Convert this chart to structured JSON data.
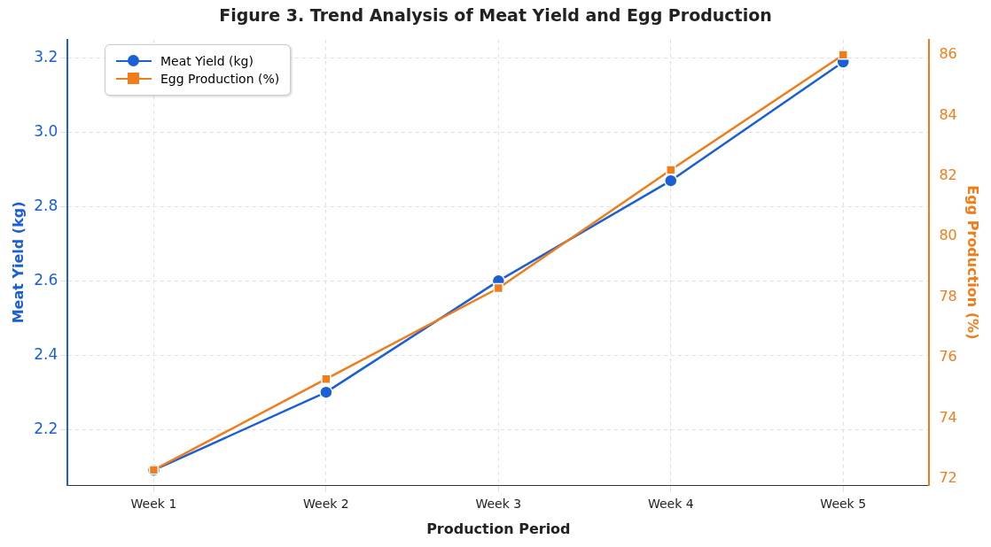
{
  "chart_data": {
    "type": "line",
    "title": "Figure 3. Trend Analysis of Meat Yield and Egg Production",
    "xlabel": "Production Period",
    "ylabel": "Meat Yield (kg)",
    "y2label": "Egg Production (%)",
    "categories": [
      "Week 1",
      "Week 2",
      "Week 3",
      "Week 4",
      "Week 5"
    ],
    "series": [
      {
        "name": "Meat Yield (kg)",
        "color": "#1a5fd6",
        "marker": "circle",
        "values": [
          2.09,
          2.3,
          2.6,
          2.87,
          3.19
        ]
      },
      {
        "name": "Egg Production (%)",
        "color": "#f07c1a",
        "marker": "square",
        "axis": "y2",
        "values": [
          72.3,
          75.3,
          78.3,
          82.2,
          86.0
        ]
      }
    ],
    "ylim": [
      2.05,
      3.25
    ],
    "yticks": [
      2.2,
      2.4,
      2.6,
      2.8,
      {
        "value": 3,
        "label": "3.0"
      },
      3.2
    ],
    "y2lim": [
      71.8,
      86.5
    ],
    "y2ticks": [
      72,
      74,
      76,
      78,
      80,
      82,
      84,
      86
    ],
    "grid": true,
    "legend": "top left",
    "line_style": "solid"
  }
}
